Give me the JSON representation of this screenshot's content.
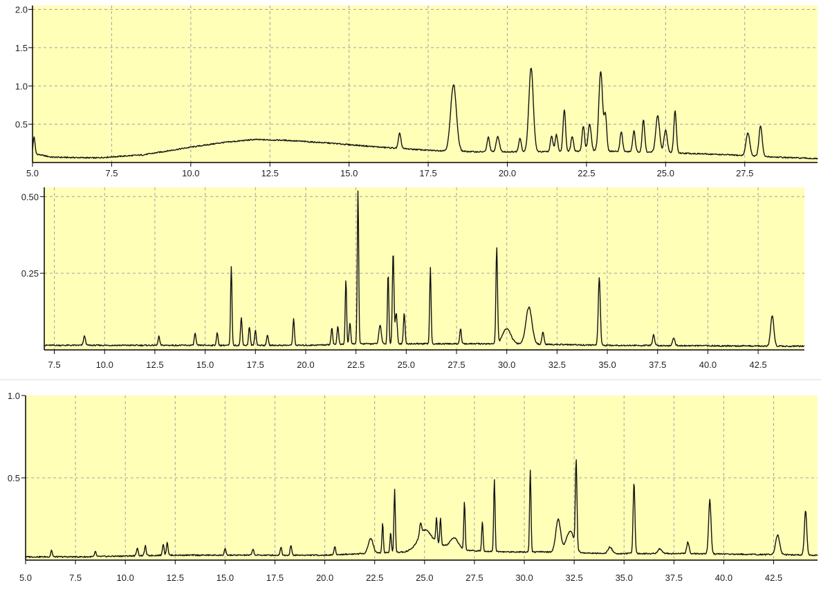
{
  "colors": {
    "plot_bg": "#ffffb8",
    "trace": "#111111",
    "grid": "#a0a0a0",
    "axis": "#000000",
    "page_bg": "#ffffff"
  },
  "chart_data": [
    {
      "type": "line",
      "title": "",
      "xlabel": "",
      "ylabel": "",
      "xlim": [
        5.0,
        29.8
      ],
      "ylim": [
        0.0,
        2.05
      ],
      "x_ticks": [
        5.0,
        7.5,
        10.0,
        12.5,
        15.0,
        17.5,
        20.0,
        22.5,
        25.0,
        27.5
      ],
      "x_tick_labels": [
        "5.0",
        "7.5",
        "10.0",
        "12.5",
        "15.0",
        "17.5",
        "20.0",
        "22.5",
        "25.0",
        "27.5"
      ],
      "y_ticks": [
        0.5,
        1.0,
        1.5,
        2.0
      ],
      "y_tick_labels": [
        "0.5",
        "1.0",
        "1.5",
        "2.0"
      ],
      "grid": true,
      "baseline": [
        [
          5.0,
          0.12
        ],
        [
          5.6,
          0.07
        ],
        [
          7.0,
          0.06
        ],
        [
          8.5,
          0.1
        ],
        [
          10.0,
          0.2
        ],
        [
          11.0,
          0.26
        ],
        [
          12.0,
          0.3
        ],
        [
          13.0,
          0.29
        ],
        [
          14.5,
          0.25
        ],
        [
          16.0,
          0.2
        ],
        [
          17.5,
          0.16
        ],
        [
          19.0,
          0.14
        ],
        [
          21.0,
          0.14
        ],
        [
          23.0,
          0.15
        ],
        [
          25.0,
          0.13
        ],
        [
          27.0,
          0.1
        ],
        [
          28.5,
          0.07
        ],
        [
          29.8,
          0.05
        ]
      ],
      "peaks": [
        [
          5.05,
          0.22,
          0.03
        ],
        [
          16.6,
          0.2,
          0.04
        ],
        [
          18.3,
          0.87,
          0.09
        ],
        [
          19.4,
          0.19,
          0.04
        ],
        [
          19.7,
          0.2,
          0.05
        ],
        [
          20.4,
          0.18,
          0.04
        ],
        [
          20.75,
          1.1,
          0.07
        ],
        [
          21.4,
          0.2,
          0.04
        ],
        [
          21.55,
          0.22,
          0.04
        ],
        [
          21.8,
          0.55,
          0.04
        ],
        [
          22.05,
          0.2,
          0.04
        ],
        [
          22.4,
          0.33,
          0.04
        ],
        [
          22.6,
          0.35,
          0.05
        ],
        [
          22.95,
          1.04,
          0.06
        ],
        [
          23.1,
          0.46,
          0.04
        ],
        [
          23.6,
          0.26,
          0.04
        ],
        [
          24.0,
          0.27,
          0.04
        ],
        [
          24.3,
          0.42,
          0.04
        ],
        [
          24.75,
          0.48,
          0.06
        ],
        [
          25.0,
          0.3,
          0.05
        ],
        [
          25.3,
          0.55,
          0.04
        ],
        [
          27.6,
          0.3,
          0.06
        ],
        [
          28.0,
          0.4,
          0.05
        ]
      ]
    },
    {
      "type": "line",
      "title": "",
      "xlabel": "",
      "ylabel": "",
      "xlim": [
        7.0,
        44.8
      ],
      "ylim": [
        0.0,
        0.53
      ],
      "x_ticks": [
        7.5,
        10.0,
        12.5,
        15.0,
        17.5,
        20.0,
        22.5,
        25.0,
        27.5,
        30.0,
        32.5,
        35.0,
        37.5,
        40.0,
        42.5
      ],
      "x_tick_labels": [
        "7.5",
        "10.0",
        "12.5",
        "15.0",
        "17.5",
        "20.0",
        "22.5",
        "25.0",
        "27.5",
        "30.0",
        "32.5",
        "35.0",
        "37.5",
        "40.0",
        "42.5"
      ],
      "y_ticks": [
        0.25,
        0.5
      ],
      "y_tick_labels": [
        "0.25",
        "0.50"
      ],
      "grid": true,
      "baseline": [
        [
          7.0,
          0.015
        ],
        [
          20.0,
          0.015
        ],
        [
          23.0,
          0.02
        ],
        [
          26.0,
          0.02
        ],
        [
          30.0,
          0.02
        ],
        [
          35.0,
          0.015
        ],
        [
          44.8,
          0.012
        ]
      ],
      "peaks": [
        [
          9.0,
          0.03,
          0.05
        ],
        [
          12.7,
          0.03,
          0.04
        ],
        [
          14.5,
          0.04,
          0.04
        ],
        [
          15.6,
          0.04,
          0.04
        ],
        [
          16.3,
          0.255,
          0.035
        ],
        [
          16.8,
          0.09,
          0.04
        ],
        [
          17.2,
          0.06,
          0.04
        ],
        [
          17.5,
          0.05,
          0.04
        ],
        [
          18.1,
          0.035,
          0.04
        ],
        [
          19.4,
          0.085,
          0.04
        ],
        [
          21.3,
          0.055,
          0.04
        ],
        [
          21.6,
          0.06,
          0.04
        ],
        [
          22.0,
          0.21,
          0.035
        ],
        [
          22.2,
          0.07,
          0.04
        ],
        [
          22.6,
          0.5,
          0.035
        ],
        [
          23.7,
          0.06,
          0.06
        ],
        [
          24.1,
          0.23,
          0.035
        ],
        [
          24.35,
          0.3,
          0.04
        ],
        [
          24.5,
          0.1,
          0.05
        ],
        [
          24.9,
          0.1,
          0.04
        ],
        [
          26.2,
          0.25,
          0.035
        ],
        [
          27.7,
          0.05,
          0.04
        ],
        [
          29.5,
          0.31,
          0.04
        ],
        [
          30.0,
          0.05,
          0.2
        ],
        [
          31.1,
          0.12,
          0.15
        ],
        [
          31.8,
          0.04,
          0.05
        ],
        [
          34.6,
          0.22,
          0.05
        ],
        [
          37.3,
          0.035,
          0.05
        ],
        [
          38.3,
          0.025,
          0.06
        ],
        [
          43.2,
          0.1,
          0.08
        ]
      ]
    },
    {
      "type": "line",
      "title": "",
      "xlabel": "",
      "ylabel": "",
      "xlim": [
        5.0,
        44.7
      ],
      "ylim": [
        0.0,
        1.0
      ],
      "x_ticks": [
        5.0,
        7.5,
        10.0,
        12.5,
        15.0,
        17.5,
        20.0,
        22.5,
        25.0,
        27.5,
        30.0,
        32.5,
        35.0,
        37.5,
        40.0,
        42.5
      ],
      "x_tick_labels": [
        "5.0",
        "7.5",
        "10.0",
        "12.5",
        "15.0",
        "17.5",
        "20.0",
        "22.5",
        "25.0",
        "27.5",
        "30.0",
        "32.5",
        "35.0",
        "37.5",
        "40.0",
        "42.5"
      ],
      "y_ticks": [
        0.5,
        1.0
      ],
      "y_tick_labels": [
        "0.5",
        "1.0"
      ],
      "grid": true,
      "baseline": [
        [
          5.0,
          0.02
        ],
        [
          8.0,
          0.02
        ],
        [
          12.0,
          0.03
        ],
        [
          16.0,
          0.03
        ],
        [
          20.0,
          0.03
        ],
        [
          22.0,
          0.04
        ],
        [
          24.0,
          0.05
        ],
        [
          25.5,
          0.1
        ],
        [
          27.0,
          0.06
        ],
        [
          29.0,
          0.05
        ],
        [
          31.0,
          0.05
        ],
        [
          34.0,
          0.04
        ],
        [
          38.0,
          0.04
        ],
        [
          44.7,
          0.03
        ]
      ],
      "peaks": [
        [
          6.3,
          0.04,
          0.04
        ],
        [
          8.5,
          0.03,
          0.04
        ],
        [
          10.6,
          0.05,
          0.04
        ],
        [
          11.0,
          0.06,
          0.04
        ],
        [
          11.9,
          0.07,
          0.04
        ],
        [
          12.1,
          0.08,
          0.04
        ],
        [
          15.0,
          0.04,
          0.04
        ],
        [
          16.4,
          0.04,
          0.04
        ],
        [
          17.8,
          0.05,
          0.04
        ],
        [
          18.3,
          0.06,
          0.04
        ],
        [
          20.5,
          0.05,
          0.04
        ],
        [
          22.3,
          0.09,
          0.12
        ],
        [
          22.9,
          0.18,
          0.035
        ],
        [
          23.3,
          0.12,
          0.035
        ],
        [
          23.5,
          0.38,
          0.035
        ],
        [
          24.8,
          0.07,
          0.05
        ],
        [
          25.0,
          0.1,
          0.3
        ],
        [
          25.6,
          0.15,
          0.035
        ],
        [
          25.8,
          0.16,
          0.035
        ],
        [
          26.5,
          0.06,
          0.2
        ],
        [
          27.0,
          0.29,
          0.035
        ],
        [
          27.9,
          0.18,
          0.035
        ],
        [
          28.5,
          0.44,
          0.035
        ],
        [
          30.3,
          0.5,
          0.035
        ],
        [
          31.7,
          0.2,
          0.12
        ],
        [
          32.3,
          0.13,
          0.2
        ],
        [
          32.6,
          0.53,
          0.04
        ],
        [
          34.3,
          0.04,
          0.1
        ],
        [
          35.5,
          0.43,
          0.045
        ],
        [
          36.8,
          0.03,
          0.1
        ],
        [
          38.2,
          0.07,
          0.06
        ],
        [
          39.3,
          0.33,
          0.06
        ],
        [
          42.7,
          0.12,
          0.1
        ],
        [
          44.1,
          0.27,
          0.06
        ]
      ]
    }
  ]
}
